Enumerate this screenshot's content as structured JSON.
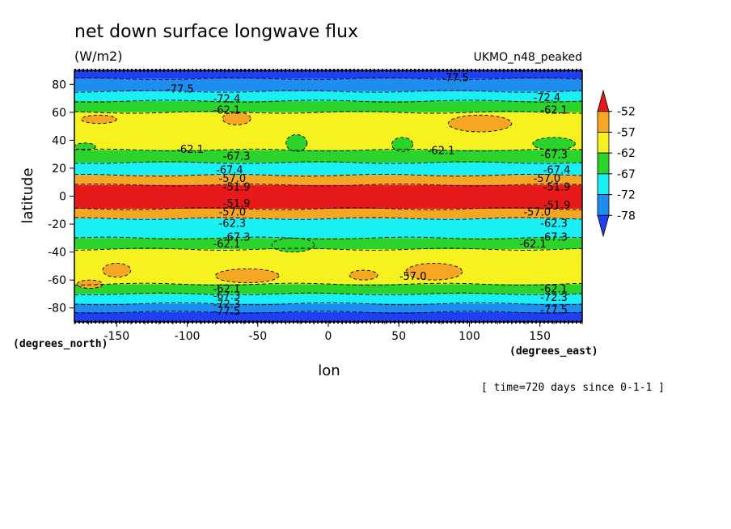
{
  "chart_data": {
    "type": "heatmap",
    "title": "net down surface longwave flux",
    "units": "(W/m2)",
    "dataset_label": "UKMO_n48_peaked",
    "xlabel": "lon",
    "ylabel": "latitude",
    "x_units_label": "(degrees_east)",
    "y_units_label": "(degrees_north)",
    "time_label": "[ time=720 days since 0-1-1 ]",
    "xlim": [
      -180,
      180
    ],
    "ylim": [
      -90,
      90
    ],
    "xticks": [
      -150,
      -100,
      -50,
      0,
      50,
      100,
      150
    ],
    "xtick_labels": [
      "-150",
      "-100",
      "-50",
      "0",
      "50",
      "100",
      "150"
    ],
    "yticks": [
      -80,
      -60,
      -40,
      -20,
      0,
      20,
      40,
      60,
      80
    ],
    "ytick_labels": [
      "-80",
      "-60",
      "-40",
      "-20",
      "0",
      "20",
      "40",
      "60",
      "80"
    ],
    "colorbar": {
      "labels": [
        "-52",
        "-57",
        "-62",
        "-67",
        "-72",
        "-78"
      ],
      "colors": [
        "#e8191b",
        "#f5a623",
        "#f7f21f",
        "#2bd42b",
        "#19f0f5",
        "#1d8df0",
        "#1f3ff2"
      ]
    },
    "zonal_bands": [
      {
        "lat": [
          84,
          90
        ],
        "level": 6
      },
      {
        "lat": [
          75,
          84
        ],
        "level": 5
      },
      {
        "lat": [
          68,
          75
        ],
        "level": 4
      },
      {
        "lat": [
          60,
          68
        ],
        "level": 3
      },
      {
        "lat": [
          33,
          60
        ],
        "level": 2
      },
      {
        "lat": [
          24,
          33
        ],
        "level": 3
      },
      {
        "lat": [
          15,
          24
        ],
        "level": 4
      },
      {
        "lat": [
          8,
          15
        ],
        "level": 1
      },
      {
        "lat": [
          -9,
          8
        ],
        "level": 0
      },
      {
        "lat": [
          -16,
          -9
        ],
        "level": 1
      },
      {
        "lat": [
          -30,
          -16
        ],
        "level": 4
      },
      {
        "lat": [
          -38,
          -30
        ],
        "level": 3
      },
      {
        "lat": [
          -63,
          -38
        ],
        "level": 2
      },
      {
        "lat": [
          -70,
          -63
        ],
        "level": 3
      },
      {
        "lat": [
          -77,
          -70
        ],
        "level": 4
      },
      {
        "lat": [
          -83,
          -77
        ],
        "level": 5
      },
      {
        "lat": [
          -90,
          -83
        ],
        "level": 6
      }
    ],
    "patches": [
      {
        "lon": [
          -175,
          -150
        ],
        "lat": [
          52,
          58
        ],
        "level": 1
      },
      {
        "lon": [
          -75,
          -55
        ],
        "lat": [
          51,
          60
        ],
        "level": 1
      },
      {
        "lon": [
          85,
          130
        ],
        "lat": [
          46,
          58
        ],
        "level": 1
      },
      {
        "lon": [
          -30,
          -15
        ],
        "lat": [
          32,
          44
        ],
        "level": 3
      },
      {
        "lon": [
          45,
          60
        ],
        "lat": [
          32,
          42
        ],
        "level": 3
      },
      {
        "lon": [
          145,
          175
        ],
        "lat": [
          33,
          42
        ],
        "level": 3
      },
      {
        "lon": [
          -180,
          -165
        ],
        "lat": [
          33,
          38
        ],
        "level": 3
      },
      {
        "lon": [
          -40,
          -10
        ],
        "lat": [
          -40,
          -30
        ],
        "level": 3
      },
      {
        "lon": [
          -80,
          -35
        ],
        "lat": [
          -62,
          -52
        ],
        "level": 1
      },
      {
        "lon": [
          -160,
          -140
        ],
        "lat": [
          -58,
          -48
        ],
        "level": 1
      },
      {
        "lon": [
          15,
          35
        ],
        "lat": [
          -60,
          -53
        ],
        "level": 1
      },
      {
        "lon": [
          55,
          95
        ],
        "lat": [
          -60,
          -48
        ],
        "level": 1
      },
      {
        "lon": [
          -178,
          -160
        ],
        "lat": [
          -66,
          -60
        ],
        "level": 1
      }
    ],
    "contour_labels": [
      {
        "text": "-77.5",
        "lon": -105,
        "lat": 77
      },
      {
        "text": "-77.5",
        "lon": 90,
        "lat": 85
      },
      {
        "text": "-62.1",
        "lon": -72,
        "lat": 62
      },
      {
        "text": "-62.1",
        "lon": 160,
        "lat": 62
      },
      {
        "text": "-72.4",
        "lon": -72,
        "lat": 70
      },
      {
        "text": "-72.4",
        "lon": 155,
        "lat": 71
      },
      {
        "text": "-62.1",
        "lon": -98,
        "lat": 34
      },
      {
        "text": "-62.1",
        "lon": 80,
        "lat": 33
      },
      {
        "text": "-67.3",
        "lon": -65,
        "lat": 29
      },
      {
        "text": "-67.3",
        "lon": 160,
        "lat": 30
      },
      {
        "text": "-67.4",
        "lon": -70,
        "lat": 19
      },
      {
        "text": "-67.4",
        "lon": 162,
        "lat": 19
      },
      {
        "text": "-57.0",
        "lon": -68,
        "lat": 13
      },
      {
        "text": "-57.0",
        "lon": 155,
        "lat": 13
      },
      {
        "text": "-51.9",
        "lon": -65,
        "lat": 7
      },
      {
        "text": "-51.9",
        "lon": 162,
        "lat": 7
      },
      {
        "text": "-51.9",
        "lon": -65,
        "lat": -5
      },
      {
        "text": "-51.9",
        "lon": 162,
        "lat": -6
      },
      {
        "text": "-57.0",
        "lon": -68,
        "lat": -11
      },
      {
        "text": "-57.0",
        "lon": 148,
        "lat": -11
      },
      {
        "text": "-62.3",
        "lon": -68,
        "lat": -19
      },
      {
        "text": "-62.3",
        "lon": 160,
        "lat": -19
      },
      {
        "text": "-67.3",
        "lon": -65,
        "lat": -29
      },
      {
        "text": "-67.3",
        "lon": 160,
        "lat": -29
      },
      {
        "text": "-62.1",
        "lon": -72,
        "lat": -34
      },
      {
        "text": "-62.1",
        "lon": 145,
        "lat": -34
      },
      {
        "text": "-57.0",
        "lon": 60,
        "lat": -57
      },
      {
        "text": "-62.1",
        "lon": -72,
        "lat": -66
      },
      {
        "text": "-62.1",
        "lon": 160,
        "lat": -66
      },
      {
        "text": "-67.3",
        "lon": -72,
        "lat": -71
      },
      {
        "text": "-72.3",
        "lon": -72,
        "lat": -77
      },
      {
        "text": "-72.3",
        "lon": 160,
        "lat": -72
      },
      {
        "text": "-77.5",
        "lon": -72,
        "lat": -82
      },
      {
        "text": "-77.5",
        "lon": 160,
        "lat": -81
      }
    ]
  }
}
